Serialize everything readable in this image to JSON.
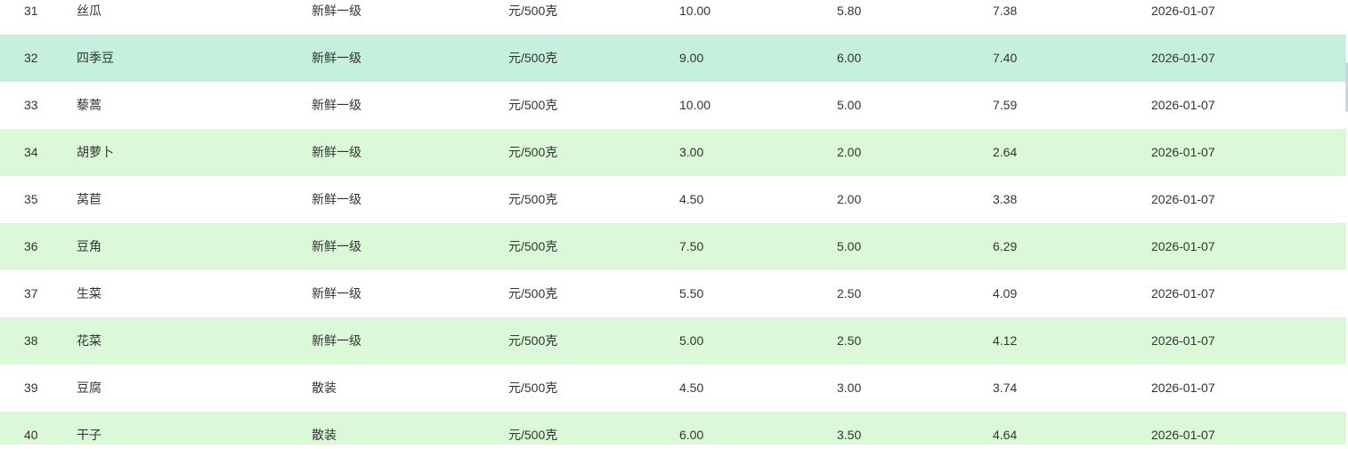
{
  "colors": {
    "alt_row": "#dbf9d9",
    "hover_row": "#c5f0dd"
  },
  "rows": [
    [
      "31",
      "丝瓜",
      "新鲜一级",
      "元/500克",
      "10.00",
      "5.80",
      "7.38",
      "2026-01-07"
    ],
    [
      "32",
      "四季豆",
      "新鲜一级",
      "元/500克",
      "9.00",
      "6.00",
      "7.40",
      "2026-01-07"
    ],
    [
      "33",
      "藜蒿",
      "新鲜一级",
      "元/500克",
      "10.00",
      "5.00",
      "7.59",
      "2026-01-07"
    ],
    [
      "34",
      "胡萝卜",
      "新鲜一级",
      "元/500克",
      "3.00",
      "2.00",
      "2.64",
      "2026-01-07"
    ],
    [
      "35",
      "莴苣",
      "新鲜一级",
      "元/500克",
      "4.50",
      "2.00",
      "3.38",
      "2026-01-07"
    ],
    [
      "36",
      "豆角",
      "新鲜一级",
      "元/500克",
      "7.50",
      "5.00",
      "6.29",
      "2026-01-07"
    ],
    [
      "37",
      "生菜",
      "新鲜一级",
      "元/500克",
      "5.50",
      "2.50",
      "4.09",
      "2026-01-07"
    ],
    [
      "38",
      "花菜",
      "新鲜一级",
      "元/500克",
      "5.00",
      "2.50",
      "4.12",
      "2026-01-07"
    ],
    [
      "39",
      "豆腐",
      "散装",
      "元/500克",
      "4.50",
      "3.00",
      "3.74",
      "2026-01-07"
    ],
    [
      "40",
      "干子",
      "散装",
      "元/500克",
      "6.00",
      "3.50",
      "4.64",
      "2026-01-07"
    ]
  ]
}
